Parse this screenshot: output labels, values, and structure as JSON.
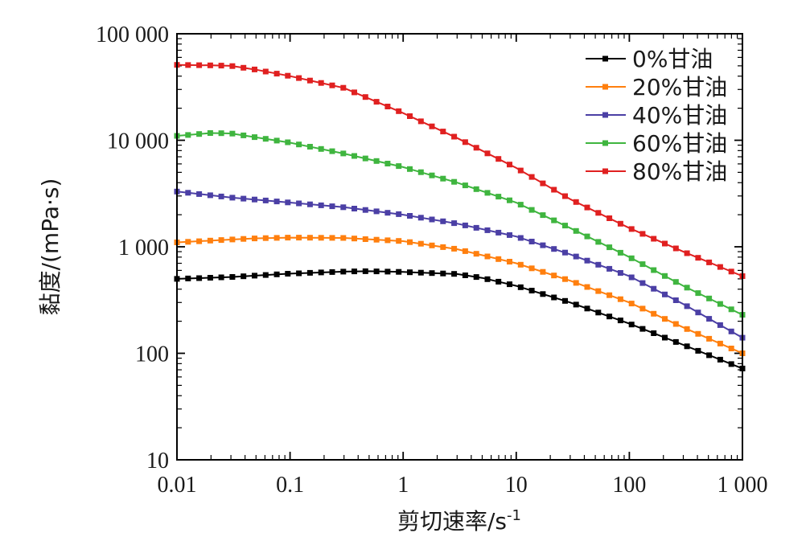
{
  "chart_data": {
    "type": "line",
    "xlabel": "剪切速率/s",
    "xlabel_sup": "-1",
    "ylabel": "黏度/(mPa·s)",
    "x_scale": "log",
    "y_scale": "log",
    "xlim": [
      0.01,
      1000
    ],
    "ylim": [
      10,
      100000
    ],
    "x_ticks": [
      0.01,
      0.1,
      1,
      10,
      100,
      1000
    ],
    "x_tick_labels": [
      "0.01",
      "0.1",
      "1",
      "10",
      "100",
      "1 000"
    ],
    "y_ticks": [
      10,
      100,
      1000,
      10000,
      100000
    ],
    "y_tick_labels": [
      "10",
      "100",
      "1 000",
      "10 000",
      "100 000"
    ],
    "grid": false,
    "legend_position": "top-right",
    "series": [
      {
        "name": "0%甘油",
        "color": "#000000",
        "points": [
          [
            0.01,
            500
          ],
          [
            0.03,
            520
          ],
          [
            0.1,
            560
          ],
          [
            0.3,
            585
          ],
          [
            0.5,
            590
          ],
          [
            1,
            580
          ],
          [
            3,
            555
          ],
          [
            5,
            510
          ],
          [
            10,
            430
          ],
          [
            30,
            300
          ],
          [
            100,
            190
          ],
          [
            300,
            120
          ],
          [
            1000,
            72
          ]
        ]
      },
      {
        "name": "20%甘油",
        "color": "#ff7f0e",
        "points": [
          [
            0.01,
            1100
          ],
          [
            0.03,
            1170
          ],
          [
            0.05,
            1200
          ],
          [
            0.1,
            1220
          ],
          [
            0.3,
            1210
          ],
          [
            1,
            1130
          ],
          [
            3,
            950
          ],
          [
            10,
            700
          ],
          [
            30,
            480
          ],
          [
            100,
            300
          ],
          [
            300,
            175
          ],
          [
            1000,
            100
          ]
        ]
      },
      {
        "name": "40%甘油",
        "color": "#4b3fa5",
        "points": [
          [
            0.01,
            3300
          ],
          [
            0.03,
            2900
          ],
          [
            0.1,
            2600
          ],
          [
            0.3,
            2350
          ],
          [
            1,
            2000
          ],
          [
            3,
            1650
          ],
          [
            10,
            1250
          ],
          [
            30,
            850
          ],
          [
            100,
            530
          ],
          [
            300,
            290
          ],
          [
            1000,
            140
          ]
        ]
      },
      {
        "name": "60%甘油",
        "color": "#3fb53f",
        "points": [
          [
            0.01,
            11000
          ],
          [
            0.02,
            11700
          ],
          [
            0.03,
            11600
          ],
          [
            0.1,
            9500
          ],
          [
            0.3,
            7500
          ],
          [
            1,
            5600
          ],
          [
            3,
            4000
          ],
          [
            10,
            2600
          ],
          [
            30,
            1500
          ],
          [
            100,
            800
          ],
          [
            300,
            430
          ],
          [
            1000,
            230
          ]
        ]
      },
      {
        "name": "80%甘油",
        "color": "#e02020",
        "points": [
          [
            0.01,
            51000
          ],
          [
            0.02,
            50500
          ],
          [
            0.03,
            50000
          ],
          [
            0.05,
            46000
          ],
          [
            0.1,
            40000
          ],
          [
            0.3,
            31000
          ],
          [
            1,
            18000
          ],
          [
            3,
            10500
          ],
          [
            10,
            5500
          ],
          [
            30,
            2800
          ],
          [
            100,
            1500
          ],
          [
            300,
            900
          ],
          [
            1000,
            530
          ]
        ]
      }
    ]
  }
}
